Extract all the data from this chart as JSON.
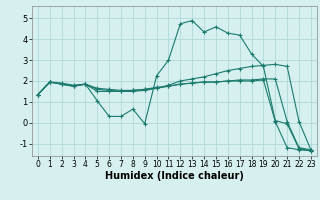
{
  "xlabel": "Humidex (Indice chaleur)",
  "background_color": "#d6f0f0",
  "grid_color": "#b0d8d8",
  "line_color": "#1a7a6e",
  "xlim": [
    -0.5,
    23.5
  ],
  "ylim": [
    -1.6,
    5.6
  ],
  "xticks": [
    0,
    1,
    2,
    3,
    4,
    5,
    6,
    7,
    8,
    9,
    10,
    11,
    12,
    13,
    14,
    15,
    16,
    17,
    18,
    19,
    20,
    21,
    22,
    23
  ],
  "yticks": [
    -1,
    0,
    1,
    2,
    3,
    4,
    5
  ],
  "series": [
    {
      "x": [
        0,
        1,
        2,
        3,
        4,
        5,
        6,
        7,
        8,
        9,
        10,
        11,
        12,
        13,
        14,
        15,
        16,
        17,
        18,
        19,
        20,
        21,
        22,
        23
      ],
      "y": [
        1.35,
        1.95,
        1.9,
        1.8,
        1.85,
        1.05,
        0.3,
        0.3,
        0.65,
        -0.05,
        2.25,
        3.0,
        4.75,
        4.9,
        4.35,
        4.6,
        4.3,
        4.2,
        3.3,
        2.7,
        0.1,
        -0.05,
        -1.25,
        -1.35
      ]
    },
    {
      "x": [
        0,
        1,
        2,
        3,
        4,
        5,
        6,
        7,
        8,
        9,
        10,
        11,
        12,
        13,
        14,
        15,
        16,
        17,
        18,
        19,
        20,
        21,
        22,
        23
      ],
      "y": [
        1.35,
        1.95,
        1.85,
        1.75,
        1.85,
        1.5,
        1.5,
        1.5,
        1.55,
        1.6,
        1.65,
        1.8,
        2.0,
        2.1,
        2.2,
        2.35,
        2.5,
        2.6,
        2.7,
        2.75,
        2.8,
        2.7,
        0.05,
        -1.3
      ]
    },
    {
      "x": [
        0,
        1,
        2,
        3,
        4,
        5,
        6,
        7,
        8,
        9,
        10,
        11,
        12,
        13,
        14,
        15,
        16,
        17,
        18,
        19,
        20,
        21,
        22,
        23
      ],
      "y": [
        1.35,
        1.95,
        1.85,
        1.75,
        1.85,
        1.6,
        1.55,
        1.5,
        1.5,
        1.55,
        1.65,
        1.75,
        1.85,
        1.9,
        1.95,
        1.95,
        2.0,
        2.05,
        2.05,
        2.1,
        2.1,
        0.05,
        -1.2,
        -1.3
      ]
    },
    {
      "x": [
        0,
        1,
        2,
        3,
        4,
        5,
        6,
        7,
        8,
        9,
        10,
        11,
        12,
        13,
        14,
        15,
        16,
        17,
        18,
        19,
        20,
        21,
        22,
        23
      ],
      "y": [
        1.35,
        1.95,
        1.85,
        1.75,
        1.85,
        1.65,
        1.6,
        1.55,
        1.55,
        1.6,
        1.7,
        1.75,
        1.85,
        1.9,
        1.95,
        1.95,
        2.0,
        2.0,
        2.0,
        2.05,
        0.05,
        -1.2,
        -1.3,
        -1.35
      ]
    }
  ]
}
